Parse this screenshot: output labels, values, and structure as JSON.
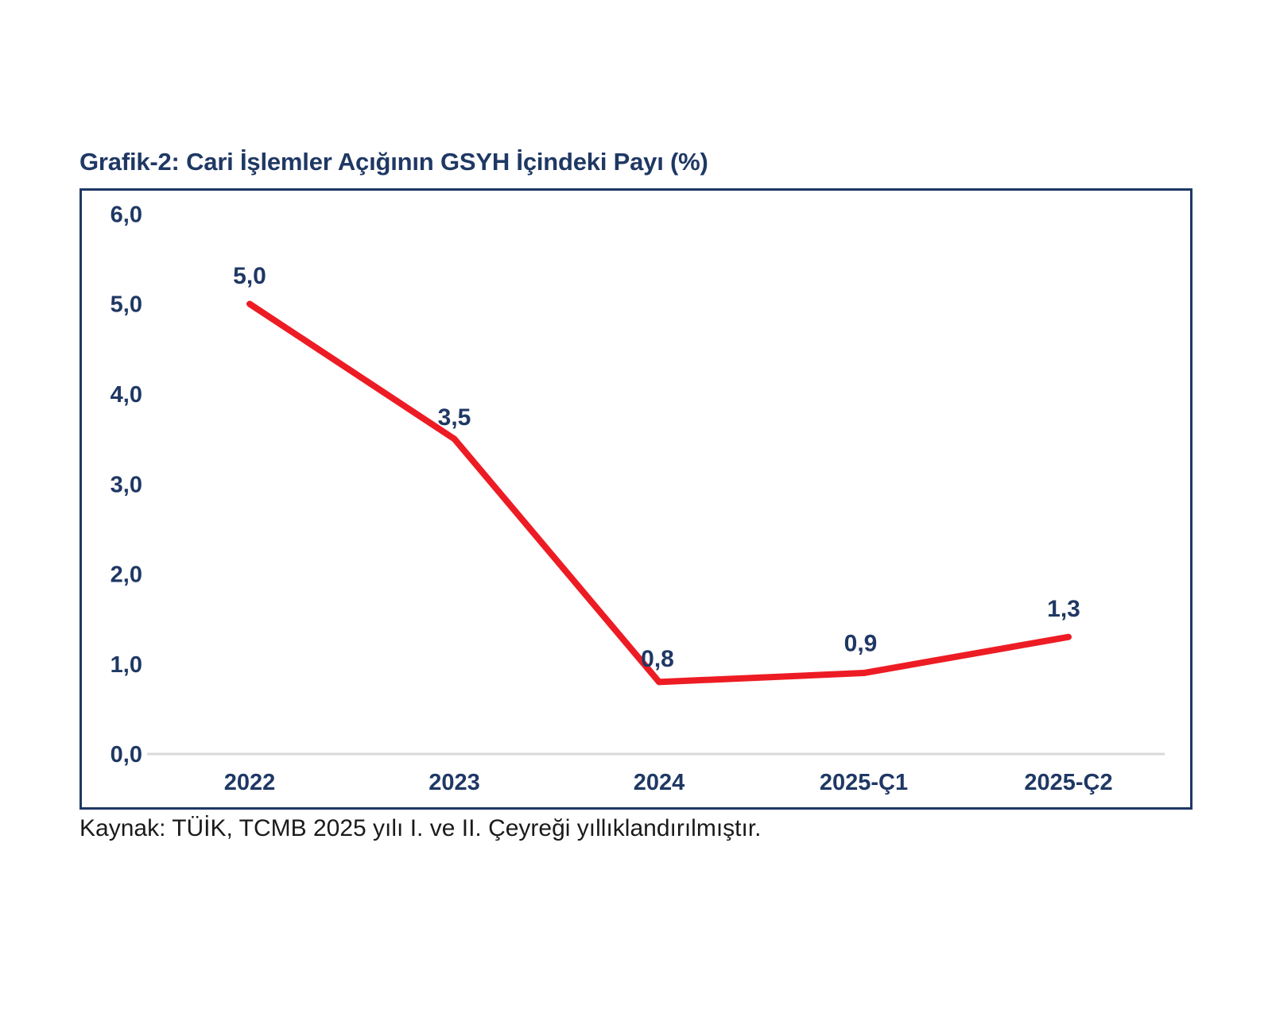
{
  "title": "Grafik-2: Cari İşlemler Açığının GSYH İçindeki Payı (%)",
  "source_note": "Kaynak: TÜİK, TCMB 2025 yılı I. ve II. Çeyreği yıllıklandırılmıştır.",
  "colors": {
    "title_text": "#1f3864",
    "axis_text": "#1f3864",
    "data_label_text": "#1f3864",
    "line": "#ed1c24",
    "chart_border": "#1f3864",
    "baseline": "#d9d9d9",
    "source_text": "#1a1a1a",
    "background": "#ffffff"
  },
  "chart_data": {
    "type": "line",
    "title": "Grafik-2: Cari İşlemler Açığının GSYH İçindeki Payı (%)",
    "categories": [
      "2022",
      "2023",
      "2024",
      "2025-Ç1",
      "2025-Ç2"
    ],
    "values": [
      5.0,
      3.5,
      0.8,
      0.9,
      1.3
    ],
    "point_labels": [
      "5,0",
      "3,5",
      "0,8",
      "0,9",
      "1,3"
    ],
    "y_tick_values": [
      0,
      1,
      2,
      3,
      4,
      5,
      6
    ],
    "y_tick_labels": [
      "0,0",
      "1,0",
      "2,0",
      "3,0",
      "4,0",
      "5,0",
      "6,0"
    ],
    "ylim": [
      0,
      6
    ],
    "xlabel": "",
    "ylabel": "",
    "grid": false,
    "legend": false,
    "line_color": "#ed1c24",
    "baseline_at_zero": true
  }
}
